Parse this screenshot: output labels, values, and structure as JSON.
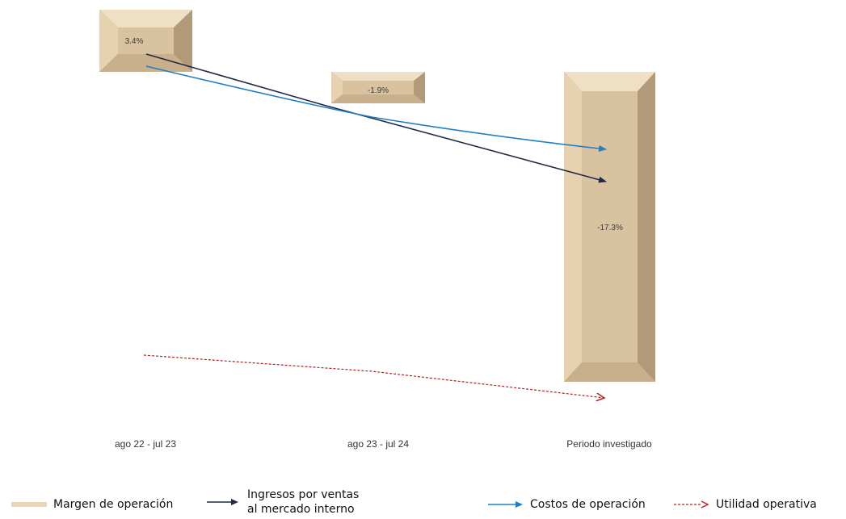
{
  "chart_data": {
    "type": "bar",
    "categories": [
      "ago 22 - jul 23",
      "ago 23 - jul 24",
      "Periodo investigado"
    ],
    "series": [
      {
        "name": "Margen de operación",
        "kind": "bar",
        "values": [
          3.4,
          -1.9,
          -17.3
        ],
        "labels": [
          "3.4%",
          "-1.9%",
          "-17.3%"
        ],
        "color": "#d9c2a0"
      },
      {
        "name": "Ingresos por ventas al mercado interno",
        "kind": "arrow",
        "color": "#1f2a44"
      },
      {
        "name": "Costos de operación",
        "kind": "arrow",
        "color": "#1e7fc8"
      },
      {
        "name": "Utilidad operativa",
        "kind": "dashed-arrow",
        "color": "#b22222"
      }
    ],
    "title": "",
    "xlabel": "",
    "ylabel": "",
    "grid": false,
    "legend_position": "bottom"
  },
  "legend": {
    "margin": "Margen de operación",
    "ingresos_line1": "Ingresos por ventas",
    "ingresos_line2": "al mercado interno",
    "costos": "Costos de operación",
    "utilidad": "Utilidad operativa"
  }
}
